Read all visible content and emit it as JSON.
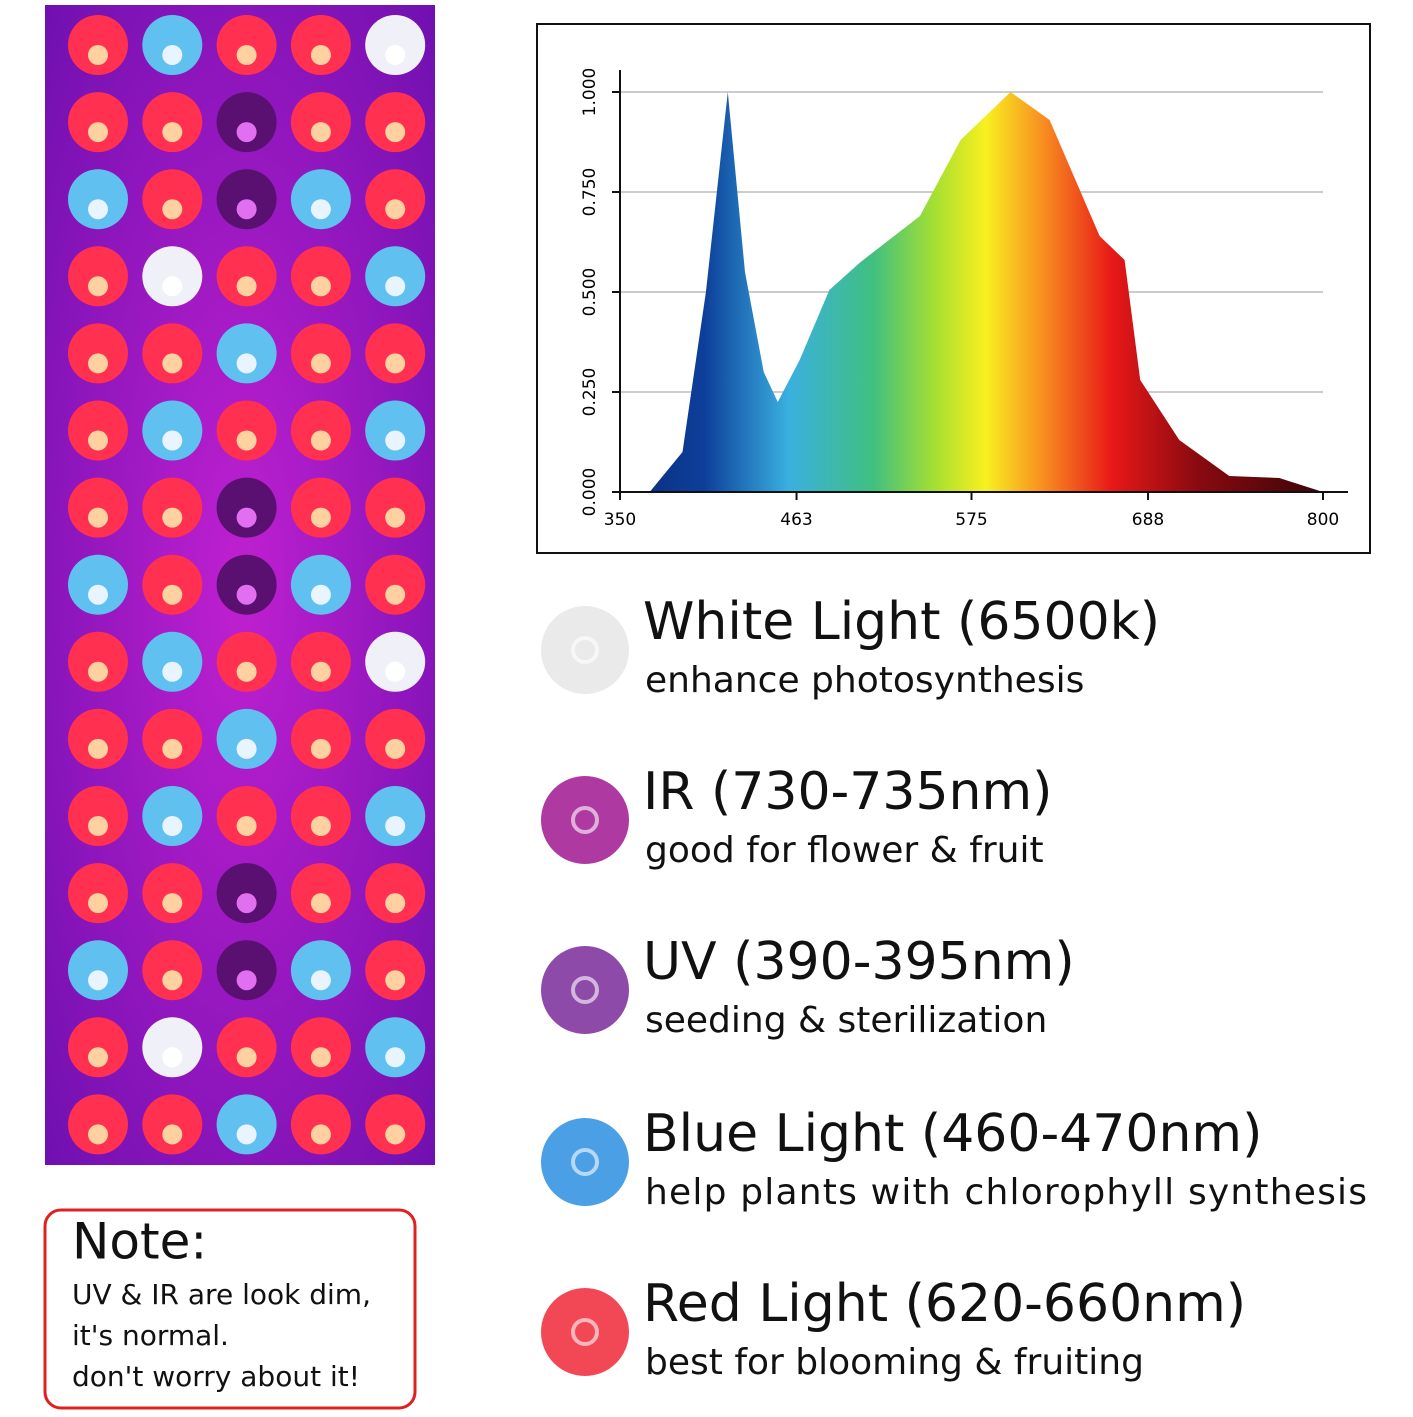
{
  "chart_data": {
    "type": "area",
    "x": [
      350,
      369,
      390,
      405,
      419,
      430,
      442,
      451,
      465,
      484,
      504,
      542,
      568,
      600,
      625,
      657,
      673,
      683,
      708,
      740,
      772,
      800
    ],
    "values": [
      0,
      0,
      0.1,
      0.5,
      1.0,
      0.55,
      0.3,
      0.225,
      0.33,
      0.505,
      0.575,
      0.69,
      0.88,
      1.0,
      0.93,
      0.64,
      0.58,
      0.28,
      0.13,
      0.04,
      0.035,
      0
    ],
    "xlim": [
      350,
      800
    ],
    "xticks": [
      350,
      463,
      575,
      688,
      800
    ],
    "ylim": [
      0,
      1
    ],
    "yticks": [
      {
        "value": 0,
        "label": "0.000"
      },
      {
        "value": 0.25,
        "label": "0.250"
      },
      {
        "value": 0.5,
        "label": "0.500"
      },
      {
        "value": 0.75,
        "label": "0.750"
      },
      {
        "value": 1,
        "label": "1.000"
      }
    ],
    "grid": true
  },
  "legend_items": [
    {
      "title": "White Light (6500k)",
      "subtitle": "enhance photosynthesis",
      "color": "#e6e6e6"
    },
    {
      "title": "IR (730-735nm)",
      "subtitle": "good for flower & fruit",
      "color": "#a01890"
    },
    {
      "title": "UV (390-395nm)",
      "subtitle": "seeding & sterilization",
      "color": "#7a2a9a"
    },
    {
      "title": "Blue Light (460-470nm)",
      "subtitle": "help plants with chlorophyll synthesis",
      "color": "#2c8ee0"
    },
    {
      "title": "Red Light (620-660nm)",
      "subtitle": "best for blooming & fruiting",
      "color": "#f02838"
    }
  ],
  "note": {
    "title": "Note:",
    "lines": [
      "UV & IR are look dim,",
      "it's normal.",
      "don't worry about it!"
    ]
  }
}
